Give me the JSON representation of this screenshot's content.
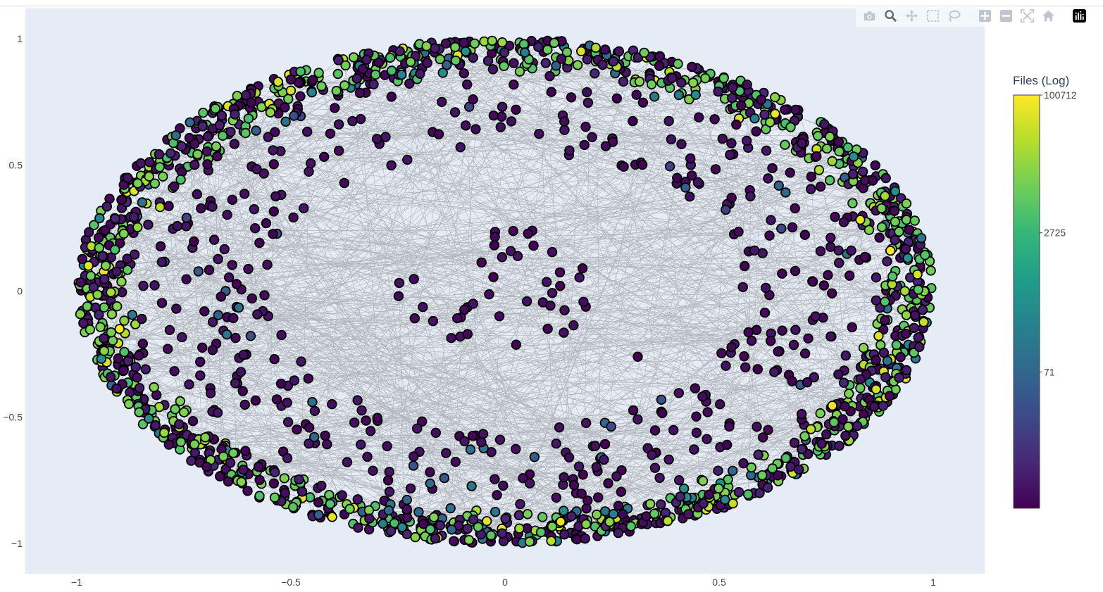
{
  "toolbar": {
    "buttons": [
      {
        "name": "download-plot-button",
        "icon": "camera-icon"
      },
      {
        "name": "zoom-button",
        "icon": "zoom-icon"
      },
      {
        "name": "pan-button",
        "icon": "pan-icon"
      },
      {
        "name": "box-select-button",
        "icon": "box-select-icon"
      },
      {
        "name": "lasso-select-button",
        "icon": "lasso-icon"
      },
      {
        "name": "zoom-in-button",
        "icon": "plus-square-icon"
      },
      {
        "name": "zoom-out-button",
        "icon": "minus-square-icon"
      },
      {
        "name": "autoscale-button",
        "icon": "autoscale-icon"
      },
      {
        "name": "reset-axes-button",
        "icon": "home-icon"
      },
      {
        "name": "plotly-logo-button",
        "icon": "plotly-logo-icon"
      }
    ],
    "icon_color": "#c0c6cf",
    "logo_color": "#000000"
  },
  "colors": {
    "plot_bg": "#e5ecf6",
    "edge": "#888888",
    "marker_outline": "#000000",
    "viridis": [
      "#440154",
      "#482878",
      "#3e4989",
      "#31688e",
      "#26828e",
      "#1f9e89",
      "#35b779",
      "#6ece58",
      "#b5de2b",
      "#fde725"
    ]
  },
  "chart_data": {
    "type": "scatter",
    "subtype": "network-graph",
    "title": "",
    "xlabel": "",
    "ylabel": "",
    "xlim": [
      -1.12,
      1.12
    ],
    "ylim": [
      -1.12,
      1.12
    ],
    "x_ticks": [
      -1,
      -0.5,
      0,
      0.5,
      1
    ],
    "y_ticks": [
      -1,
      -0.5,
      0,
      0.5,
      1
    ],
    "x_tick_labels": [
      "−1",
      "−0.5",
      "0",
      "0.5",
      "1"
    ],
    "y_tick_labels": [
      "−1",
      "−0.5",
      "0",
      "0.5",
      "1"
    ],
    "grid": false,
    "layout_description": "Nodes arranged on an ellipse of radius ~1, with a sparse inner ring and a central cluster near the origin; gray edges connect nodes across the layout.",
    "color_scale": "Viridis",
    "colorbar": {
      "title": "Files (Log)",
      "tick_labels": [
        "100712",
        "2725",
        "71"
      ],
      "tick_positions_log10": [
        5.003,
        3.435,
        1.851
      ],
      "range_log10": [
        0.3,
        5.003
      ]
    },
    "node_groups": [
      {
        "name": "outer-ring",
        "approx_count": 1500,
        "radius_range": [
          0.86,
          1.0
        ],
        "dominant_colors": "mixed (purple, green, yellow)"
      },
      {
        "name": "inner-ring",
        "approx_count": 420,
        "radius_range": [
          0.55,
          0.86
        ],
        "dominant_colors": "dark purple"
      },
      {
        "name": "center-cluster",
        "approx_count": 45,
        "radius_range": [
          0,
          0.25
        ],
        "dominant_colors": "dark purple"
      }
    ],
    "highlighted_nodes": [
      {
        "x": -0.9,
        "y": -0.15,
        "color_value_log10": 5.0
      },
      {
        "x": 0.9,
        "y": 0.16,
        "color_value_log10": 5.0
      },
      {
        "x": 0.31,
        "y": -0.26,
        "color_value_log10": 0.3
      }
    ]
  }
}
